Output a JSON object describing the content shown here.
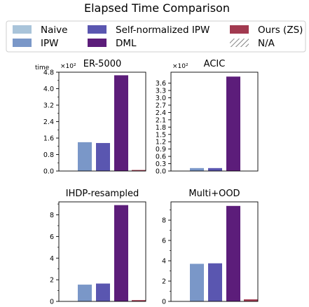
{
  "figure_title": "Elapsed Time Comparison",
  "legend": {
    "entries": [
      {
        "label": "Naive",
        "color": "#a9c4da"
      },
      {
        "label": "IPW",
        "color": "#7a97c8"
      },
      {
        "label": "Self-normalized IPW",
        "color": "#5a56b0"
      },
      {
        "label": "DML",
        "color": "#5c1d7a"
      },
      {
        "label": "Ours (ZS)",
        "color": "#a23a50"
      },
      {
        "label": "N/A",
        "color": "hatch"
      }
    ]
  },
  "chart_data": [
    {
      "type": "bar",
      "title": "ER-5000",
      "ylabel": "time",
      "exponent_label": "×10²",
      "ylim": [
        0,
        4.8
      ],
      "yticks": [
        "0.0",
        "0.8",
        "1.6",
        "2.4",
        "3.2",
        "4.0",
        "4.8"
      ],
      "yminor": [
        0.4,
        1.2,
        2.0,
        2.8,
        3.6,
        4.4
      ],
      "series": [
        {
          "name": "Naive",
          "value": null
        },
        {
          "name": "IPW",
          "value": 1.4
        },
        {
          "name": "Self-normalized IPW",
          "value": 1.36
        },
        {
          "name": "DML",
          "value": 4.65
        },
        {
          "name": "Ours (ZS)",
          "value": 0.05
        }
      ]
    },
    {
      "type": "bar",
      "title": "ACIC",
      "ylabel": "",
      "exponent_label": "×10²",
      "ylim": [
        0,
        4.05
      ],
      "yticks": [
        "0.0",
        "0.3",
        "0.6",
        "0.9",
        "1.2",
        "1.5",
        "1.8",
        "2.1",
        "2.4",
        "2.7",
        "3.0",
        "3.3",
        "3.6"
      ],
      "yminor": [],
      "series": [
        {
          "name": "Naive",
          "value": null
        },
        {
          "name": "IPW",
          "value": 0.12
        },
        {
          "name": "Self-normalized IPW",
          "value": 0.12
        },
        {
          "name": "DML",
          "value": 3.87
        },
        {
          "name": "Ours (ZS)",
          "value": 0.0
        }
      ]
    },
    {
      "type": "bar",
      "title": "IHDP-resampled",
      "ylabel": "",
      "exponent_label": "",
      "ylim": [
        0,
        9.2
      ],
      "yticks": [
        "0",
        "2",
        "4",
        "6",
        "8"
      ],
      "yminor": [
        1,
        3,
        5,
        7,
        9
      ],
      "series": [
        {
          "name": "Naive",
          "value": null
        },
        {
          "name": "IPW",
          "value": 1.55
        },
        {
          "name": "Self-normalized IPW",
          "value": 1.65
        },
        {
          "name": "DML",
          "value": 8.9
        },
        {
          "name": "Ours (ZS)",
          "value": 0.12
        }
      ]
    },
    {
      "type": "bar",
      "title": "Multi+OOD",
      "ylabel": "",
      "exponent_label": "",
      "ylim": [
        0,
        9.8
      ],
      "yticks": [
        "0",
        "2",
        "4",
        "6",
        "8"
      ],
      "yminor": [
        1,
        3,
        5,
        7,
        9
      ],
      "series": [
        {
          "name": "Naive",
          "value": null
        },
        {
          "name": "IPW",
          "value": 3.7
        },
        {
          "name": "Self-normalized IPW",
          "value": 3.75
        },
        {
          "name": "DML",
          "value": 9.4
        },
        {
          "name": "Ours (ZS)",
          "value": 0.2
        }
      ]
    }
  ]
}
